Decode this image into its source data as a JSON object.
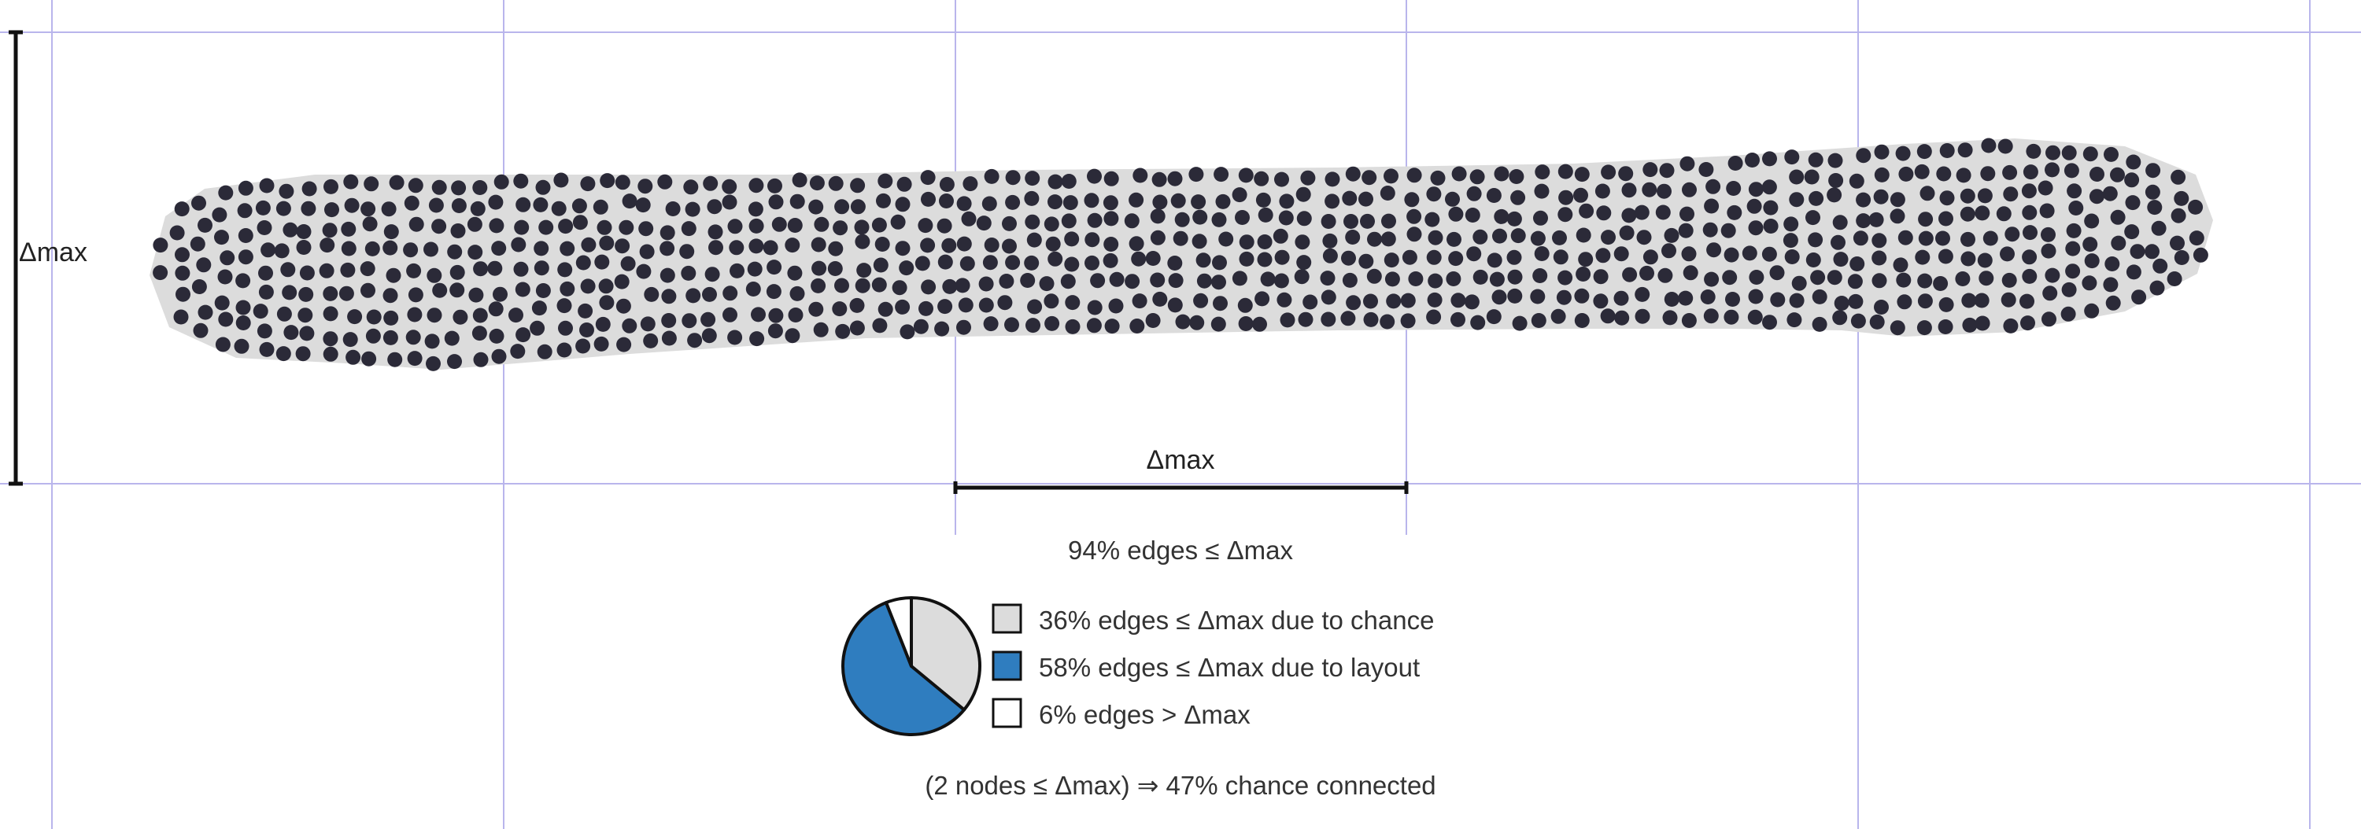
{
  "colors": {
    "grid_line": "#b9b5ec",
    "node": "#2b2a38",
    "hull": "#dcdcdc",
    "chance": "#dcdcdc",
    "layout": "#2f7dbf",
    "over": "#ffffff",
    "outline": "#111111"
  },
  "dimension": {
    "vertical_label": "Δmax",
    "horizontal_label": "Δmax"
  },
  "summary": {
    "edges_within": "94% edges ≤ Δmax"
  },
  "breakdown": {
    "slices": [
      {
        "label": "36% edges ≤ Δmax due to chance",
        "percent": 36,
        "color_key": "chance"
      },
      {
        "label": "58% edges ≤ Δmax due to layout",
        "percent": 58,
        "color_key": "layout"
      },
      {
        "label": "6% edges > Δmax",
        "percent": 6,
        "color_key": "over"
      }
    ]
  },
  "footer": {
    "connection_chance": "(2 nodes ≤ Δmax) ⇒ 47% chance connected"
  }
}
